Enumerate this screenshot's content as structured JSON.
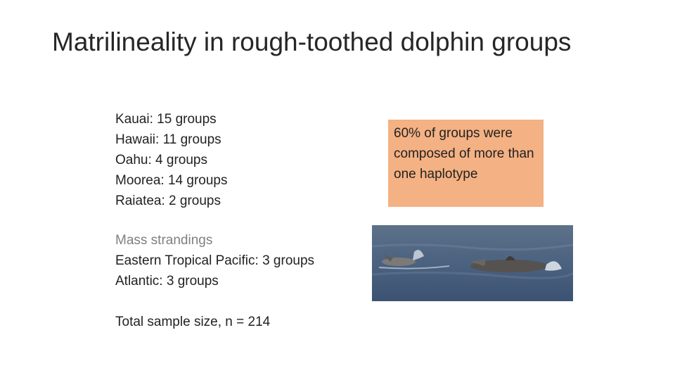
{
  "header": {
    "title": "Matrilineality in rough-toothed dolphin groups"
  },
  "left_list": {
    "locations": [
      "Kauai: 15 groups",
      "Hawaii: 11 groups",
      "Oahu: 4 groups",
      "Moorea: 14 groups",
      "Raiatea: 2 groups"
    ],
    "strandings_heading": "Mass strandings",
    "strandings": [
      "Eastern Tropical Pacific: 3 groups",
      "Atlantic: 3 groups"
    ],
    "total": "Total sample size, n = 214"
  },
  "callout": {
    "text": "60% of groups were composed of more than one haplotype"
  }
}
